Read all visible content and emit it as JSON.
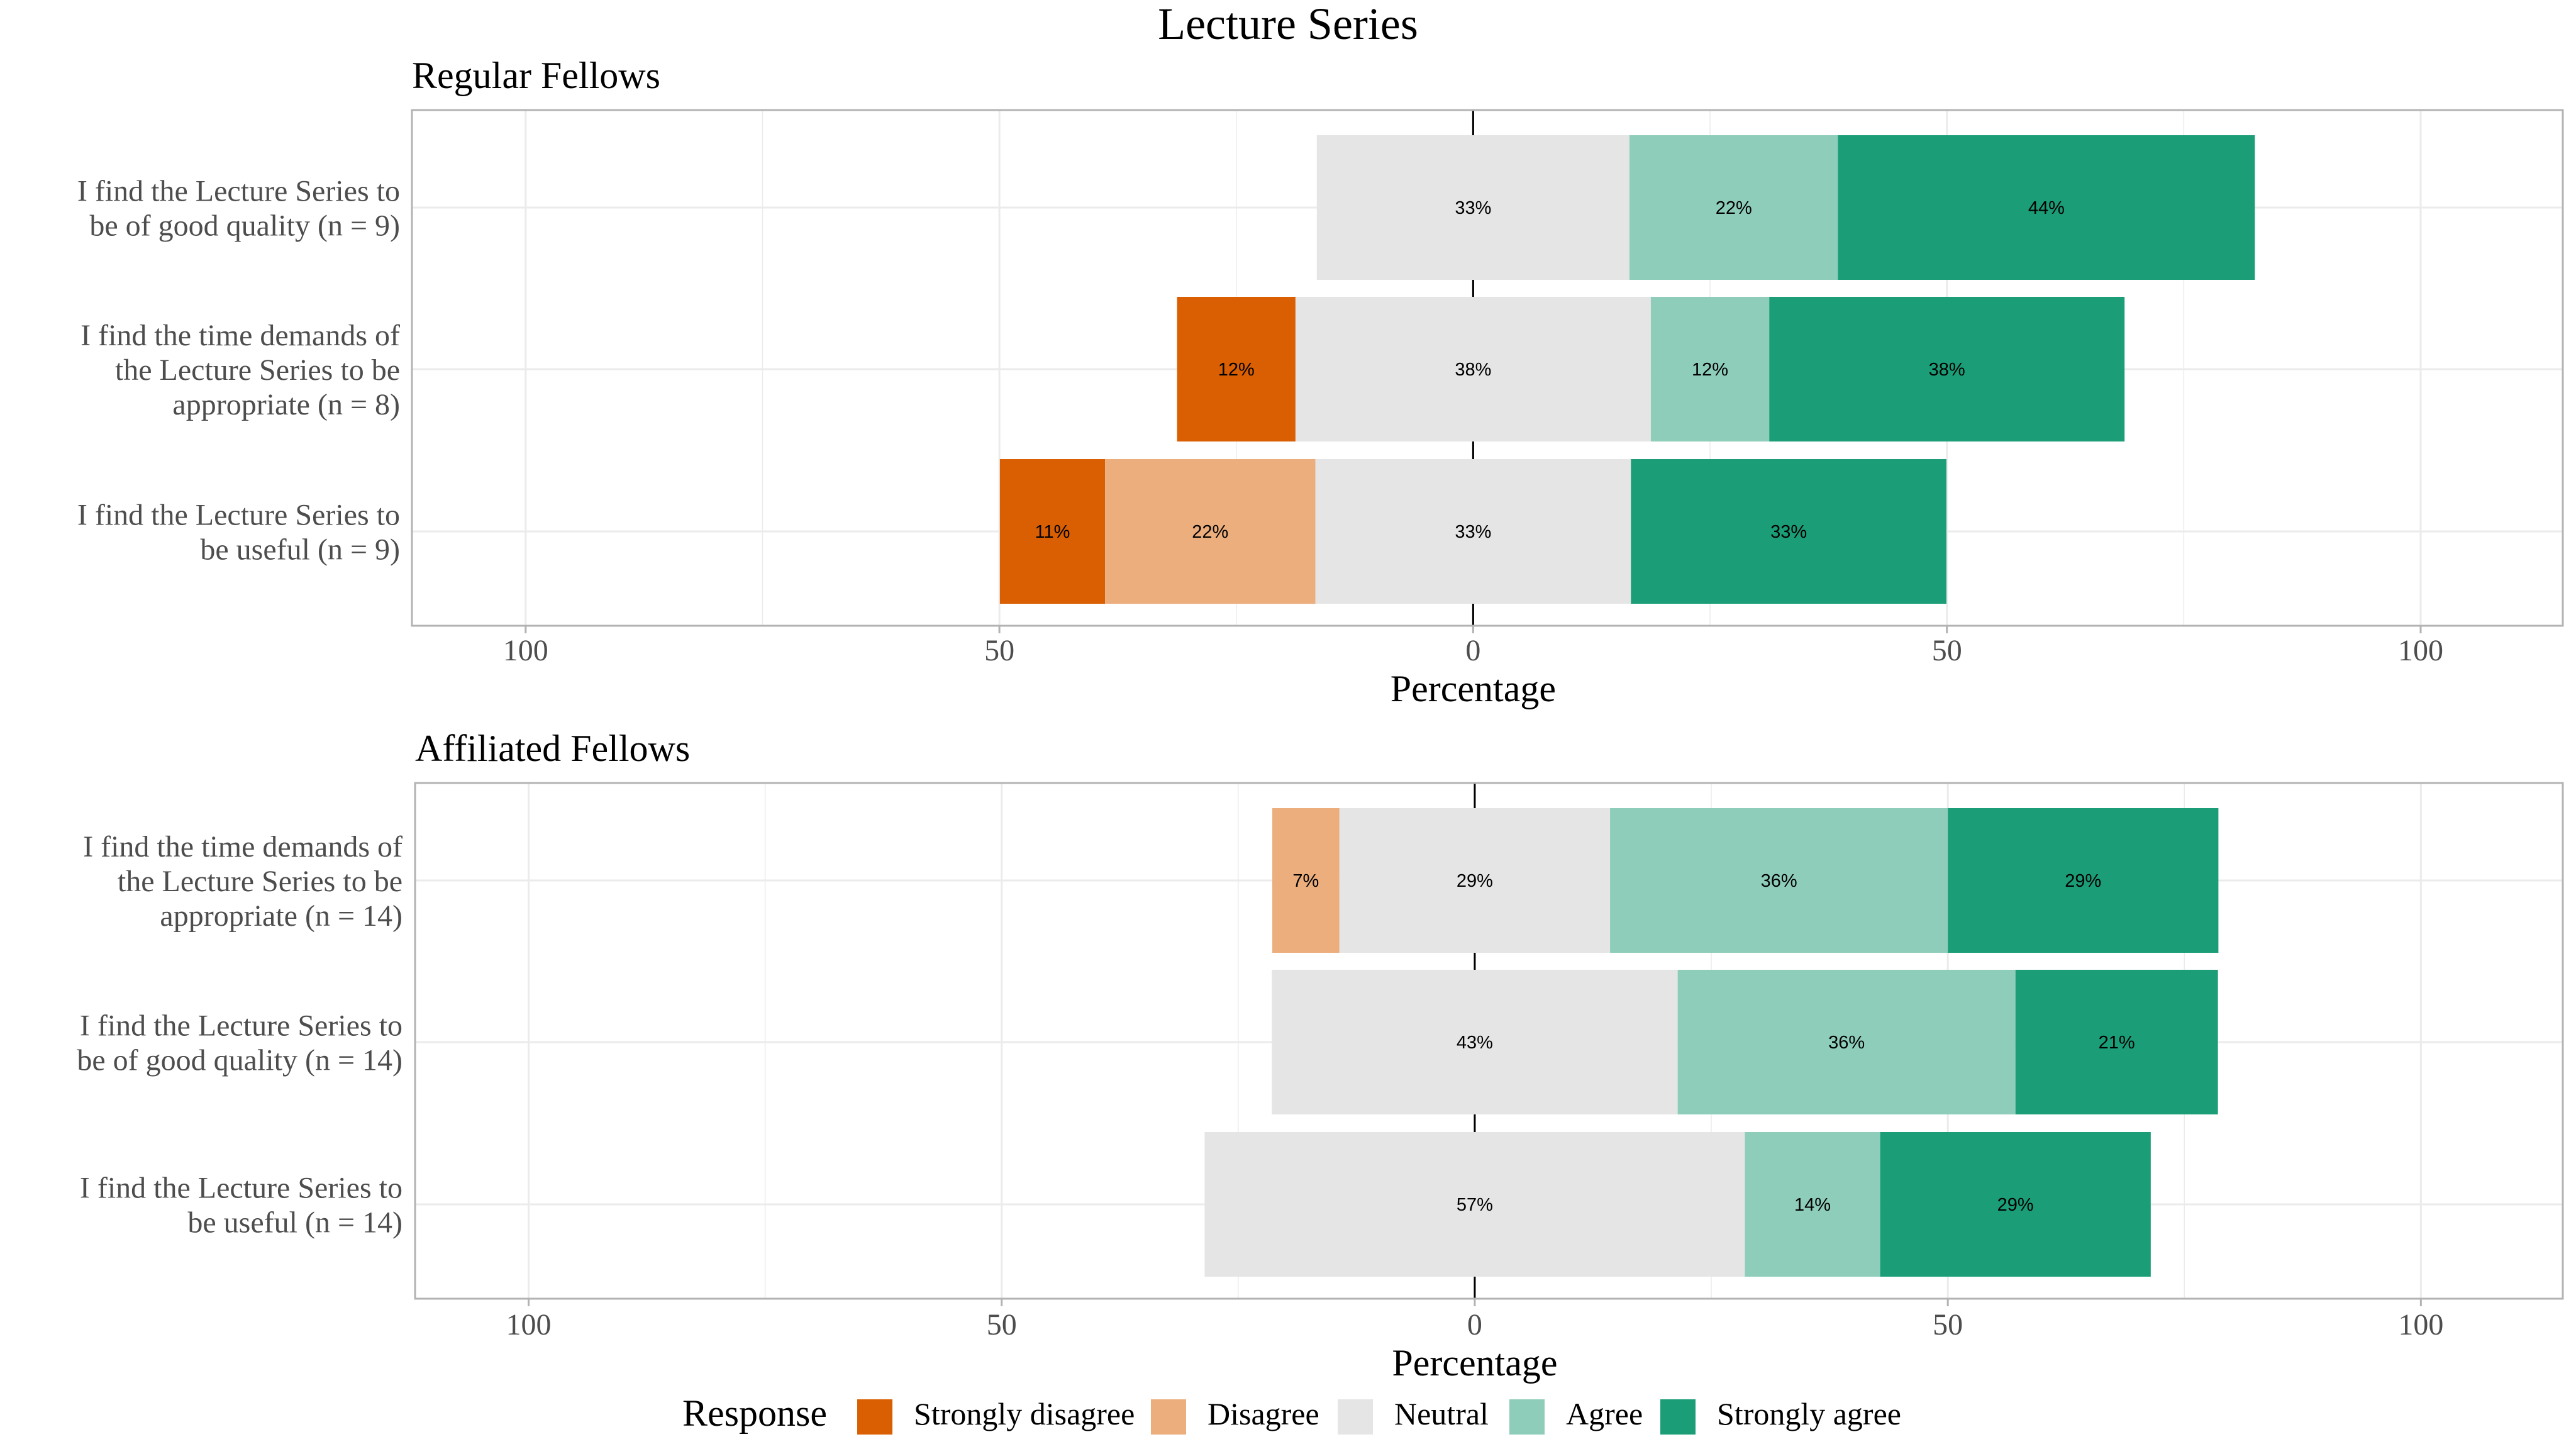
{
  "title": "Lecture Series",
  "chart_data": [
    {
      "type": "bar",
      "subtitle": "Regular Fellows",
      "xlabel": "Percentage",
      "xlim": [
        -100,
        100
      ],
      "tick_values": [
        -100,
        -50,
        0,
        50,
        100
      ],
      "tick_labels": [
        "100",
        "50",
        "0",
        "50",
        "100"
      ],
      "categories": [
        {
          "label_lines": [
            "I find the Lecture Series to",
            "be of good quality (n = 9)"
          ],
          "values": {
            "strongly_disagree": 0,
            "disagree": 0,
            "neutral": 33,
            "agree": 22,
            "strongly_agree": 44
          },
          "labels": {
            "neutral": "33%",
            "agree": "22%",
            "strongly_agree": "44%"
          }
        },
        {
          "label_lines": [
            "I find the time demands of",
            "the Lecture Series to be",
            "appropriate (n = 8)"
          ],
          "values": {
            "strongly_disagree": 12.5,
            "disagree": 0,
            "neutral": 37.5,
            "agree": 12.5,
            "strongly_agree": 37.5
          },
          "labels": {
            "strongly_disagree": "12%",
            "neutral": "38%",
            "agree": "12%",
            "strongly_agree": "38%"
          }
        },
        {
          "label_lines": [
            "I find the Lecture Series to",
            "be useful (n = 9)"
          ],
          "values": {
            "strongly_disagree": 11.1,
            "disagree": 22.2,
            "neutral": 33.3,
            "agree": 0,
            "strongly_agree": 33.3
          },
          "labels": {
            "strongly_disagree": "11%",
            "disagree": "22%",
            "neutral": "33%",
            "strongly_agree": "33%"
          }
        }
      ]
    },
    {
      "type": "bar",
      "subtitle": "Affiliated Fellows",
      "xlabel": "Percentage",
      "xlim": [
        -100,
        100
      ],
      "tick_values": [
        -100,
        -50,
        0,
        50,
        100
      ],
      "tick_labels": [
        "100",
        "50",
        "0",
        "50",
        "100"
      ],
      "categories": [
        {
          "label_lines": [
            "I find the time demands of",
            "the Lecture Series to be",
            "appropriate (n = 14)"
          ],
          "values": {
            "strongly_disagree": 0,
            "disagree": 7.1,
            "neutral": 28.6,
            "agree": 35.7,
            "strongly_agree": 28.6
          },
          "labels": {
            "disagree": "7%",
            "neutral": "29%",
            "agree": "36%",
            "strongly_agree": "29%"
          }
        },
        {
          "label_lines": [
            "I find the Lecture Series to",
            "be of good quality (n = 14)"
          ],
          "values": {
            "strongly_disagree": 0,
            "disagree": 0,
            "neutral": 42.9,
            "agree": 35.7,
            "strongly_agree": 21.4
          },
          "labels": {
            "neutral": "43%",
            "agree": "36%",
            "strongly_agree": "21%"
          }
        },
        {
          "label_lines": [
            "I find the Lecture Series to",
            "be useful (n = 14)"
          ],
          "values": {
            "strongly_disagree": 0,
            "disagree": 0,
            "neutral": 57.1,
            "agree": 14.3,
            "strongly_agree": 28.6
          },
          "labels": {
            "neutral": "57%",
            "agree": "14%",
            "strongly_agree": "29%"
          }
        }
      ]
    }
  ],
  "legend": {
    "title": "Response",
    "placement": "bottom",
    "items": [
      {
        "key": "strongly_disagree",
        "label": "Strongly disagree",
        "color": "#D95F02"
      },
      {
        "key": "disagree",
        "label": "Disagree",
        "color": "#ECAE7D"
      },
      {
        "key": "neutral",
        "label": "Neutral",
        "color": "#E5E5E5"
      },
      {
        "key": "agree",
        "label": "Agree",
        "color": "#8ECDBA"
      },
      {
        "key": "strongly_agree",
        "label": "Strongly agree",
        "color": "#1B9E77"
      }
    ]
  },
  "colors": {
    "grid": "#EBEBEB",
    "panel_border": "#B3B3B3",
    "zero_line": "#000000",
    "text": "#4D4D4D"
  }
}
